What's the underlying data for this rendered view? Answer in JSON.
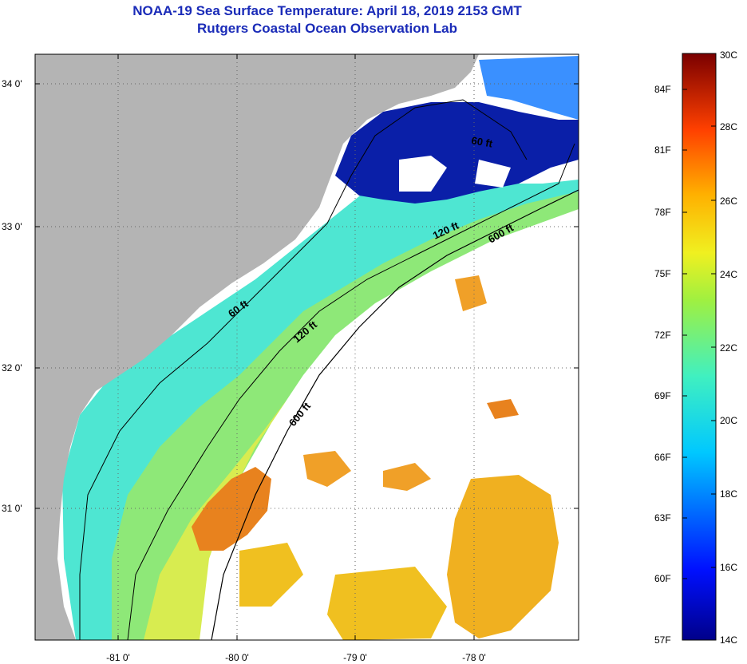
{
  "title": {
    "line1": "NOAA-19 Sea Surface Temperature:  April 18, 2019 2153 GMT",
    "line2": "Rutgers Coastal Ocean Observation Lab"
  },
  "map": {
    "lat_labels": [
      "34 0'",
      "33 0'",
      "32 0'",
      "31 0'"
    ],
    "lon_labels": [
      "-81 0'",
      "-80 0'",
      "-79 0'",
      "-78 0'"
    ],
    "contours": [
      "60 ft",
      "60 ft",
      "120 ft",
      "120 ft",
      "600 ft",
      "600 ft"
    ],
    "colors": {
      "land": "#b4b4b4",
      "cold": "#0a1fa8",
      "teal": "#35e0e0",
      "green": "#9ae870",
      "warm": "#f2a020",
      "orange": "#e87a20"
    }
  },
  "colorbar": {
    "f_labels": [
      "84F",
      "81F",
      "78F",
      "75F",
      "72F",
      "69F",
      "66F",
      "63F",
      "60F",
      "57F"
    ],
    "c_labels": [
      "30C",
      "28C",
      "26C",
      "24C",
      "22C",
      "20C",
      "18C",
      "16C",
      "14C"
    ]
  }
}
